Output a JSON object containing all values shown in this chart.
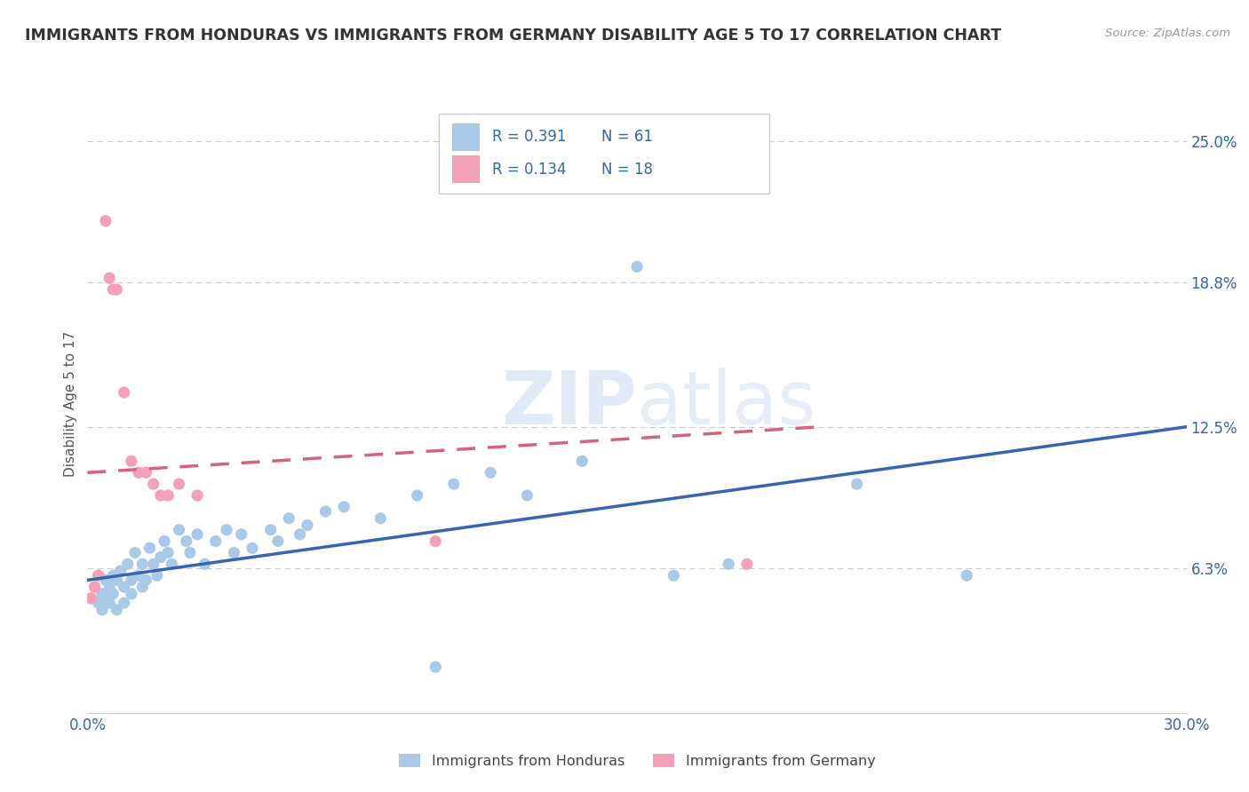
{
  "title": "IMMIGRANTS FROM HONDURAS VS IMMIGRANTS FROM GERMANY DISABILITY AGE 5 TO 17 CORRELATION CHART",
  "source": "Source: ZipAtlas.com",
  "ylabel": "Disability Age 5 to 17",
  "xlim": [
    0.0,
    0.3
  ],
  "ylim": [
    0.0,
    0.27
  ],
  "ytick_values": [
    0.063,
    0.125,
    0.188,
    0.25
  ],
  "ytick_labels": [
    "6.3%",
    "12.5%",
    "18.8%",
    "25.0%"
  ],
  "background_color": "#ffffff",
  "grid_color": "#cccccc",
  "honduras_color": "#aac8e8",
  "germany_color": "#f4a0b8",
  "honduras_line_color": "#3465b0",
  "germany_line_color": "#d9607a",
  "legend_R1": "R = 0.391",
  "legend_N1": "N = 61",
  "legend_R2": "R = 0.134",
  "legend_N2": "N = 18",
  "label1": "Immigrants from Honduras",
  "label2": "Immigrants from Germany",
  "honduras_scatter": [
    [
      0.001,
      0.05
    ],
    [
      0.002,
      0.055
    ],
    [
      0.003,
      0.048
    ],
    [
      0.003,
      0.06
    ],
    [
      0.004,
      0.052
    ],
    [
      0.004,
      0.045
    ],
    [
      0.005,
      0.058
    ],
    [
      0.005,
      0.05
    ],
    [
      0.006,
      0.055
    ],
    [
      0.006,
      0.048
    ],
    [
      0.007,
      0.06
    ],
    [
      0.007,
      0.052
    ],
    [
      0.008,
      0.058
    ],
    [
      0.008,
      0.045
    ],
    [
      0.009,
      0.062
    ],
    [
      0.01,
      0.055
    ],
    [
      0.01,
      0.048
    ],
    [
      0.011,
      0.065
    ],
    [
      0.012,
      0.058
    ],
    [
      0.012,
      0.052
    ],
    [
      0.013,
      0.07
    ],
    [
      0.014,
      0.06
    ],
    [
      0.015,
      0.065
    ],
    [
      0.015,
      0.055
    ],
    [
      0.016,
      0.058
    ],
    [
      0.017,
      0.072
    ],
    [
      0.018,
      0.065
    ],
    [
      0.019,
      0.06
    ],
    [
      0.02,
      0.068
    ],
    [
      0.021,
      0.075
    ],
    [
      0.022,
      0.07
    ],
    [
      0.023,
      0.065
    ],
    [
      0.025,
      0.08
    ],
    [
      0.027,
      0.075
    ],
    [
      0.028,
      0.07
    ],
    [
      0.03,
      0.078
    ],
    [
      0.032,
      0.065
    ],
    [
      0.035,
      0.075
    ],
    [
      0.038,
      0.08
    ],
    [
      0.04,
      0.07
    ],
    [
      0.042,
      0.078
    ],
    [
      0.045,
      0.072
    ],
    [
      0.05,
      0.08
    ],
    [
      0.052,
      0.075
    ],
    [
      0.055,
      0.085
    ],
    [
      0.058,
      0.078
    ],
    [
      0.06,
      0.082
    ],
    [
      0.065,
      0.088
    ],
    [
      0.07,
      0.09
    ],
    [
      0.08,
      0.085
    ],
    [
      0.09,
      0.095
    ],
    [
      0.1,
      0.1
    ],
    [
      0.11,
      0.105
    ],
    [
      0.12,
      0.095
    ],
    [
      0.135,
      0.11
    ],
    [
      0.15,
      0.195
    ],
    [
      0.16,
      0.06
    ],
    [
      0.175,
      0.065
    ],
    [
      0.21,
      0.1
    ],
    [
      0.24,
      0.06
    ],
    [
      0.095,
      0.02
    ]
  ],
  "germany_scatter": [
    [
      0.001,
      0.05
    ],
    [
      0.002,
      0.055
    ],
    [
      0.003,
      0.06
    ],
    [
      0.005,
      0.215
    ],
    [
      0.006,
      0.19
    ],
    [
      0.007,
      0.185
    ],
    [
      0.008,
      0.185
    ],
    [
      0.01,
      0.14
    ],
    [
      0.012,
      0.11
    ],
    [
      0.014,
      0.105
    ],
    [
      0.016,
      0.105
    ],
    [
      0.018,
      0.1
    ],
    [
      0.02,
      0.095
    ],
    [
      0.022,
      0.095
    ],
    [
      0.025,
      0.1
    ],
    [
      0.03,
      0.095
    ],
    [
      0.095,
      0.075
    ],
    [
      0.18,
      0.065
    ]
  ],
  "watermark": "ZIPatlas",
  "title_color": "#333333",
  "title_fontsize": 12.5,
  "axis_label_color": "#555555",
  "tick_color": "#3465b0"
}
